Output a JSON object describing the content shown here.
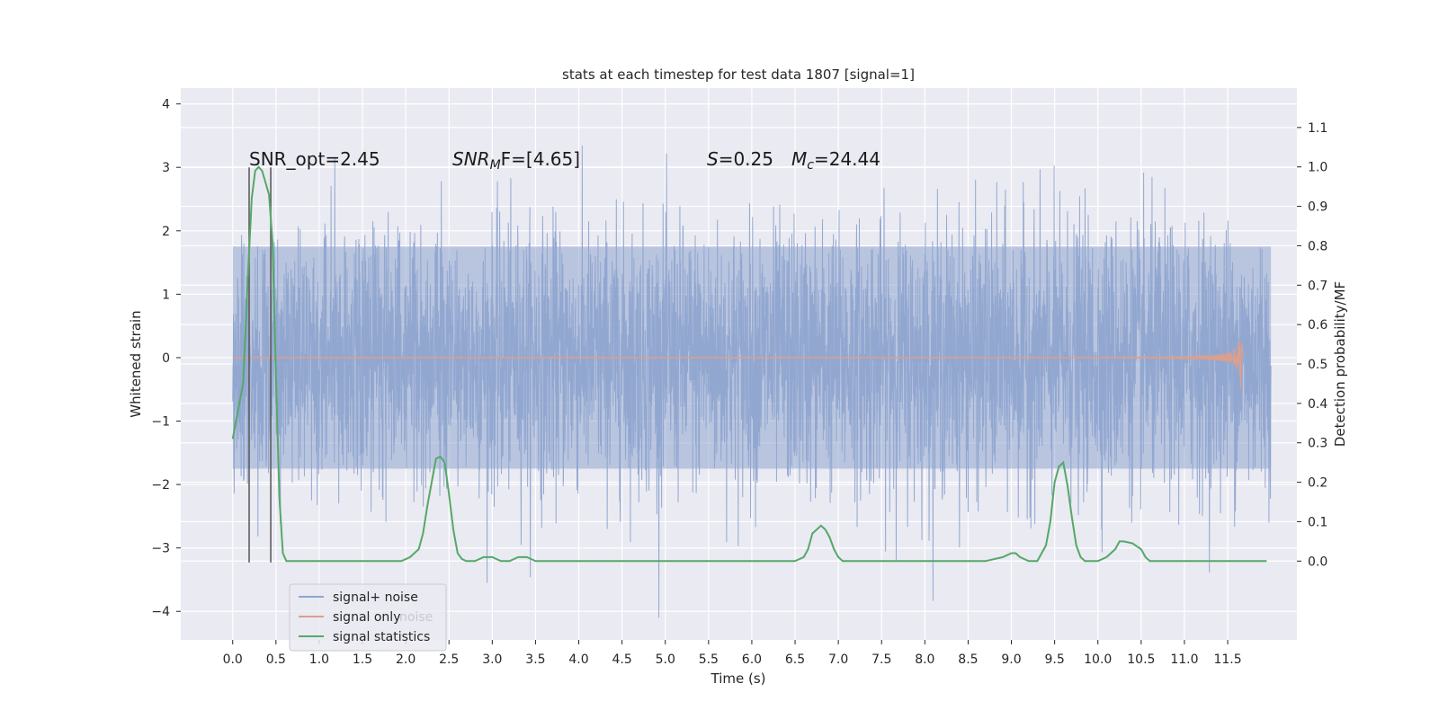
{
  "chart_data": {
    "type": "line",
    "title": "stats at each timestep for test data 1807 [signal=1]",
    "xlabel": "Time (s)",
    "ylabel": "Whitened strain",
    "ylabel_right": "Detection probability/MF",
    "xlim": [
      -0.6,
      12.3
    ],
    "ylim": [
      -4.45,
      4.25
    ],
    "ylim_right": [
      -0.2,
      1.2
    ],
    "x_ticks": [
      "0.0",
      "0.5",
      "1.0",
      "1.5",
      "2.0",
      "2.5",
      "3.0",
      "3.5",
      "4.0",
      "4.5",
      "5.0",
      "5.5",
      "6.0",
      "6.5",
      "7.0",
      "7.5",
      "8.0",
      "8.5",
      "9.0",
      "9.5",
      "10.0",
      "10.5",
      "11.0",
      "11.5"
    ],
    "y_ticks": [
      "−4",
      "−3",
      "−2",
      "−1",
      "0",
      "1",
      "2",
      "3",
      "4"
    ],
    "y_ticks_right": [
      "0.0",
      "0.1",
      "0.2",
      "0.3",
      "0.4",
      "0.5",
      "0.6",
      "0.7",
      "0.8",
      "0.9",
      "1.0",
      "1.1"
    ],
    "grid": true,
    "legend_position": "lower-left",
    "series": [
      {
        "name": "signal+ noise",
        "color": "#8fa5cf",
        "x_range": [
          0.0,
          12.0
        ],
        "amplitude_band": [
          -1.75,
          1.75
        ],
        "peak_range": [
          -4.1,
          3.9
        ]
      },
      {
        "name": "signal only",
        "color": "#dd9f8c",
        "x_range": [
          0.0,
          11.67
        ],
        "description_values": {
          "peak_time": 11.65,
          "peak_amplitude": 0.52
        }
      },
      {
        "name": "signal statistics",
        "color": "#55a868",
        "axis": "right",
        "x": [
          0.0,
          0.06,
          0.12,
          0.18,
          0.22,
          0.26,
          0.3,
          0.34,
          0.38,
          0.42,
          0.46,
          0.5,
          0.54,
          0.58,
          0.62,
          0.7,
          0.8,
          1.0,
          1.2,
          1.4,
          1.6,
          1.8,
          1.95,
          2.05,
          2.15,
          2.2,
          2.25,
          2.3,
          2.35,
          2.4,
          2.45,
          2.5,
          2.55,
          2.6,
          2.65,
          2.7,
          2.8,
          2.9,
          3.0,
          3.1,
          3.2,
          3.3,
          3.4,
          3.5,
          3.6,
          3.8,
          4.0,
          4.2,
          4.4,
          4.6,
          4.8,
          5.0,
          5.2,
          5.5,
          5.8,
          6.0,
          6.2,
          6.4,
          6.5,
          6.6,
          6.65,
          6.7,
          6.75,
          6.8,
          6.85,
          6.9,
          6.95,
          7.0,
          7.05,
          7.1,
          7.2,
          7.5,
          8.0,
          8.5,
          8.7,
          8.9,
          9.0,
          9.05,
          9.1,
          9.2,
          9.3,
          9.4,
          9.45,
          9.5,
          9.55,
          9.6,
          9.65,
          9.7,
          9.75,
          9.8,
          9.85,
          9.9,
          10.0,
          10.1,
          10.2,
          10.25,
          10.3,
          10.4,
          10.5,
          10.55,
          10.6,
          10.65,
          10.7,
          10.8,
          11.0,
          11.2,
          11.4,
          11.6,
          11.8,
          11.95
        ],
        "values": [
          0.31,
          0.38,
          0.45,
          0.74,
          0.92,
          0.99,
          1.0,
          0.99,
          0.96,
          0.93,
          0.81,
          0.47,
          0.16,
          0.02,
          0.0,
          0.0,
          0.0,
          0.0,
          0.0,
          0.0,
          0.0,
          0.0,
          0.0,
          0.01,
          0.03,
          0.07,
          0.14,
          0.2,
          0.26,
          0.265,
          0.25,
          0.17,
          0.08,
          0.02,
          0.005,
          0.0,
          0.0,
          0.01,
          0.01,
          0.0,
          0.0,
          0.01,
          0.01,
          0.0,
          0.0,
          0.0,
          0.0,
          0.0,
          0.0,
          0.0,
          0.0,
          0.0,
          0.0,
          0.0,
          0.0,
          0.0,
          0.0,
          0.0,
          0.0,
          0.01,
          0.03,
          0.07,
          0.08,
          0.09,
          0.08,
          0.06,
          0.03,
          0.01,
          0.0,
          0.0,
          0.0,
          0.0,
          0.0,
          0.0,
          0.0,
          0.01,
          0.02,
          0.02,
          0.01,
          0.0,
          0.0,
          0.04,
          0.1,
          0.2,
          0.24,
          0.25,
          0.19,
          0.11,
          0.04,
          0.01,
          0.0,
          0.0,
          0.0,
          0.01,
          0.03,
          0.05,
          0.05,
          0.045,
          0.03,
          0.01,
          0.0,
          0.0,
          0.0,
          0.0,
          0.0,
          0.0,
          0.0,
          0.0,
          0.0,
          0.0
        ]
      }
    ],
    "vertical_lines_x": [
      0.19,
      0.44
    ],
    "vertical_lines_y": [
      -3.23,
      3.0
    ],
    "annotations": {
      "snr_opt": "SNR_opt=2.45",
      "snr_mf_italic": "SNR",
      "snr_mf_sub": "M",
      "snr_mf_rest": "F=[4.65]",
      "s_italic": "S",
      "s_rest": "=0.25",
      "mc_italic": "M",
      "mc_sub": "c",
      "mc_rest": "=24.44"
    },
    "legend_ghost_text": "noise"
  }
}
